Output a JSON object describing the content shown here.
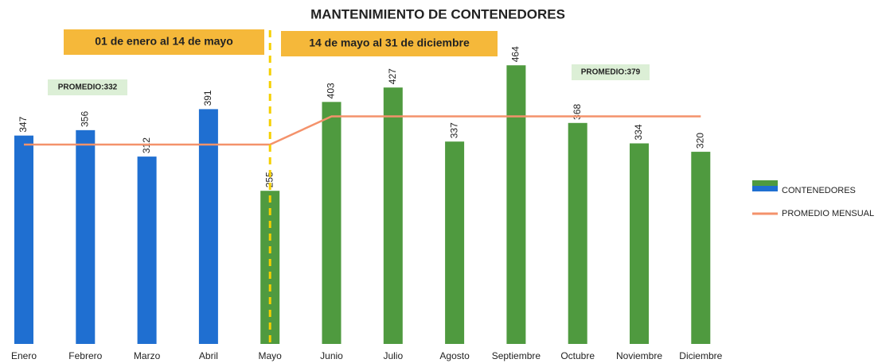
{
  "chart_data": {
    "type": "bar",
    "title": "MANTENIMIENTO DE CONTENEDORES",
    "categories": [
      "Enero",
      "Febrero",
      "Marzo",
      "Abril",
      "Mayo",
      "Junio",
      "Julio",
      "Agosto",
      "Septiembre",
      "Octubre",
      "Noviembre",
      "Diciembre"
    ],
    "series": [
      {
        "name": "CONTENEDORES",
        "type": "bar",
        "colors": [
          "#1f6fd1",
          "#1f6fd1",
          "#1f6fd1",
          "#1f6fd1",
          "#4f9a3f",
          "#4f9a3f",
          "#4f9a3f",
          "#4f9a3f",
          "#4f9a3f",
          "#4f9a3f",
          "#4f9a3f",
          "#4f9a3f"
        ],
        "values": [
          347,
          356,
          312,
          391,
          255,
          403,
          427,
          337,
          464,
          368,
          334,
          320
        ]
      },
      {
        "name": "PROMEDIO MENSUAL",
        "type": "line",
        "color": "#f4926b",
        "values": [
          332,
          332,
          332,
          332,
          332,
          379,
          379,
          379,
          379,
          379,
          379,
          379
        ]
      }
    ],
    "ylim": [
      0,
      500
    ],
    "annotations": [
      "01 de enero al 14 de mayo",
      "14 de mayo al 31 de diciembre",
      "PROMEDIO:332",
      "PROMEDIO:379"
    ],
    "legend": "right"
  }
}
